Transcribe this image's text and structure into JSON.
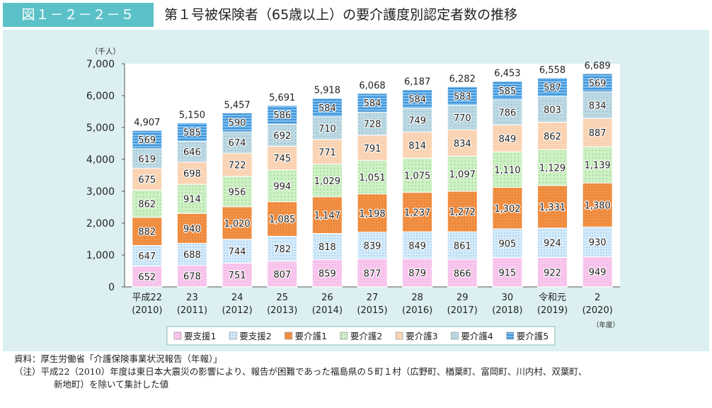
{
  "header": {
    "figure_number": "図１－２－２－５",
    "title": "第１号被保険者（65歳以上）の要介護度別認定者数の推移"
  },
  "chart_data": {
    "type": "bar",
    "stacked": true,
    "y_unit_label": "（千人）",
    "x_unit_label": "（年度）",
    "ylim": [
      0,
      7000
    ],
    "yticks": [
      "0",
      "1,000",
      "2,000",
      "3,000",
      "4,000",
      "5,000",
      "6,000",
      "7,000"
    ],
    "categories": [
      {
        "era": "平成22",
        "year": "(2010)"
      },
      {
        "era": "23",
        "year": "(2011)"
      },
      {
        "era": "24",
        "year": "(2012)"
      },
      {
        "era": "25",
        "year": "(2013)"
      },
      {
        "era": "26",
        "year": "(2014)"
      },
      {
        "era": "27",
        "year": "(2015)"
      },
      {
        "era": "28",
        "year": "(2016)"
      },
      {
        "era": "29",
        "year": "(2017)"
      },
      {
        "era": "30",
        "year": "(2018)"
      },
      {
        "era": "令和元",
        "year": "(2019)"
      },
      {
        "era": "2",
        "year": "(2020)"
      }
    ],
    "series": [
      {
        "name": "要支援1",
        "color": "#f9c8ee",
        "values": [
          652,
          678,
          751,
          807,
          859,
          877,
          879,
          866,
          915,
          922,
          949
        ]
      },
      {
        "name": "要支援2",
        "color": "#cfe9fb",
        "values": [
          647,
          688,
          744,
          782,
          818,
          839,
          849,
          861,
          905,
          924,
          930
        ]
      },
      {
        "name": "要介護1",
        "color": "#ef8a3c",
        "values": [
          882,
          940,
          1020,
          1085,
          1147,
          1198,
          1237,
          1272,
          1302,
          1331,
          1380
        ]
      },
      {
        "name": "要介護2",
        "color": "#c9efc0",
        "values": [
          862,
          914,
          956,
          994,
          1029,
          1051,
          1075,
          1097,
          1110,
          1129,
          1139
        ]
      },
      {
        "name": "要介護3",
        "color": "#fbd6b6",
        "values": [
          675,
          698,
          722,
          745,
          771,
          791,
          814,
          834,
          849,
          862,
          887
        ]
      },
      {
        "name": "要介護4",
        "color": "#b7d6e0",
        "values": [
          619,
          646,
          674,
          692,
          710,
          728,
          749,
          770,
          786,
          803,
          834
        ]
      },
      {
        "name": "要介護5",
        "color": "#4aa3e6",
        "values": [
          569,
          585,
          590,
          586,
          584,
          584,
          584,
          583,
          585,
          587,
          569
        ]
      }
    ],
    "value_labels": [
      [
        "652",
        "678",
        "751",
        "807",
        "859",
        "877",
        "879",
        "866",
        "915",
        "922",
        "949"
      ],
      [
        "647",
        "688",
        "744",
        "782",
        "818",
        "839",
        "849",
        "861",
        "905",
        "924",
        "930"
      ],
      [
        "882",
        "940",
        "1,020",
        "1,085",
        "1,147",
        "1,198",
        "1,237",
        "1,272",
        "1,302",
        "1,331",
        "1,380"
      ],
      [
        "862",
        "914",
        "956",
        "994",
        "1,029",
        "1,051",
        "1,075",
        "1,097",
        "1,110",
        "1,129",
        "1,139"
      ],
      [
        "675",
        "698",
        "722",
        "745",
        "771",
        "791",
        "814",
        "834",
        "849",
        "862",
        "887"
      ],
      [
        "619",
        "646",
        "674",
        "692",
        "710",
        "728",
        "749",
        "770",
        "786",
        "803",
        "834"
      ],
      [
        "569",
        "585",
        "590",
        "586",
        "584",
        "584",
        "584",
        "583",
        "585",
        "587",
        "569"
      ]
    ],
    "totals": [
      4907,
      5150,
      5457,
      5691,
      5918,
      6068,
      6187,
      6282,
      6453,
      6558,
      6689
    ],
    "total_labels": [
      "4,907",
      "5,150",
      "5,457",
      "5,691",
      "5,918",
      "6,068",
      "6,187",
      "6,282",
      "6,453",
      "6,558",
      "6,689"
    ],
    "legend_placement": "bottom",
    "grid": false
  },
  "notes": {
    "source": "資料：厚生労働省「介護保険事業状況報告（年報）」",
    "note_line1": "（注）平成22（2010）年度は東日本大震災の影響により、報告が困難であった福島県の５町１村（広野町、楢葉町、富岡町、川内村、双葉町、",
    "note_line2": "新地町）を除いて集計した値"
  }
}
